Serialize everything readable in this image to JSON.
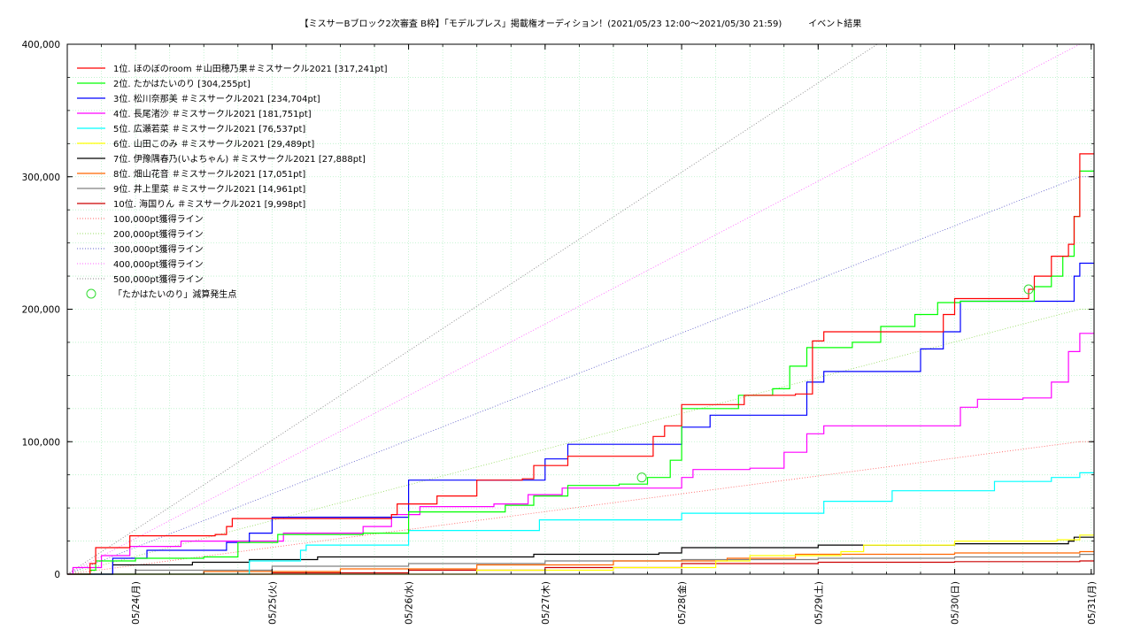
{
  "chart_data": {
    "type": "line",
    "title": "【ミスサーBブロック2次審査 B枠】「モデルプレス」掲載権オーディション！(2021/05/23 12:00〜2021/05/30 21:59)　　　イベント結果",
    "xlabel": "",
    "ylabel": "",
    "ylim": [
      0,
      400000
    ],
    "y_ticks": [
      "0",
      "100,000",
      "200,000",
      "300,000",
      "400,000"
    ],
    "y_tick_values": [
      0,
      100000,
      200000,
      300000,
      400000
    ],
    "x_range": [
      "2021/05/23 12:00",
      "2021/05/31 00:30"
    ],
    "x_ticks": [
      "05/24(月)",
      "05/25(火)",
      "05/26(水)",
      "05/27(木)",
      "05/28(金)",
      "05/29(土)",
      "05/30(日)",
      "05/31(月)"
    ],
    "x_tick_dates": [
      "2021/05/24",
      "2021/05/25",
      "2021/05/26",
      "2021/05/27",
      "2021/05/28",
      "2021/05/29",
      "2021/05/30",
      "2021/05/31"
    ],
    "grid": true,
    "legend_position": "top-left",
    "series": [
      {
        "name": "1位. ほのぼのroom ＃山田穂乃果＃ミスサークル2021 [317,241pt]",
        "color": "#ff0000",
        "points": [
          [
            "05/23 12:00",
            0
          ],
          [
            "05/23 16:00",
            8000
          ],
          [
            "05/23 17:00",
            20000
          ],
          [
            "05/23 20:00",
            20000
          ],
          [
            "05/23 23:00",
            29000
          ],
          [
            "05/24 06:00",
            29000
          ],
          [
            "05/24 14:00",
            30000
          ],
          [
            "05/24 16:00",
            36000
          ],
          [
            "05/24 17:00",
            42000
          ],
          [
            "05/25 13:00",
            42000
          ],
          [
            "05/25 21:00",
            45000
          ],
          [
            "05/25 22:00",
            53000
          ],
          [
            "05/26 05:00",
            59000
          ],
          [
            "05/26 11:00",
            59000
          ],
          [
            "05/26 12:00",
            71000
          ],
          [
            "05/26 20:00",
            72000
          ],
          [
            "05/26 22:00",
            82000
          ],
          [
            "05/27 02:00",
            82000
          ],
          [
            "05/27 04:00",
            89000
          ],
          [
            "05/27 17:00",
            89000
          ],
          [
            "05/27 19:00",
            104000
          ],
          [
            "05/27 21:00",
            112000
          ],
          [
            "05/28 00:00",
            128000
          ],
          [
            "05/28 10:00",
            128000
          ],
          [
            "05/28 11:00",
            135000
          ],
          [
            "05/28 20:00",
            136000
          ],
          [
            "05/28 23:00",
            176000
          ],
          [
            "05/29 01:00",
            183000
          ],
          [
            "05/29 22:00",
            196000
          ],
          [
            "05/30 00:00",
            208000
          ],
          [
            "05/30 12:00",
            208000
          ],
          [
            "05/30 13:00",
            215000
          ],
          [
            "05/30 14:00",
            225000
          ],
          [
            "05/30 17:00",
            240000
          ],
          [
            "05/30 20:00",
            249000
          ],
          [
            "05/30 21:00",
            270000
          ],
          [
            "05/30 22:00",
            317241
          ],
          [
            "05/31 00:30",
            317241
          ]
        ]
      },
      {
        "name": "2位. たかはたいのり [304,255pt]",
        "color": "#00ff00",
        "points": [
          [
            "05/23 12:00",
            0
          ],
          [
            "05/23 16:00",
            3000
          ],
          [
            "05/23 17:00",
            10000
          ],
          [
            "05/23 22:00",
            10000
          ],
          [
            "05/24 00:00",
            12000
          ],
          [
            "05/24 12:00",
            13000
          ],
          [
            "05/24 18:00",
            24000
          ],
          [
            "05/25 01:00",
            30000
          ],
          [
            "05/25 16:00",
            31000
          ],
          [
            "05/25 21:00",
            31000
          ],
          [
            "05/26 00:00",
            47000
          ],
          [
            "05/26 11:00",
            47000
          ],
          [
            "05/26 17:00",
            52000
          ],
          [
            "05/26 22:00",
            59000
          ],
          [
            "05/27 04:00",
            67000
          ],
          [
            "05/27 13:00",
            68000
          ],
          [
            "05/27 18:00",
            73000
          ],
          [
            "05/27 20:00",
            73000
          ],
          [
            "05/27 22:00",
            86000
          ],
          [
            "05/28 00:00",
            125000
          ],
          [
            "05/28 08:00",
            125000
          ],
          [
            "05/28 10:00",
            135000
          ],
          [
            "05/28 16:00",
            140000
          ],
          [
            "05/28 19:00",
            157000
          ],
          [
            "05/28 22:00",
            171000
          ],
          [
            "05/29 06:00",
            175000
          ],
          [
            "05/29 11:00",
            187000
          ],
          [
            "05/29 17:00",
            196000
          ],
          [
            "05/29 21:00",
            205000
          ],
          [
            "05/30 01:00",
            206000
          ],
          [
            "05/30 12:00",
            206000
          ],
          [
            "05/30 14:00",
            217000
          ],
          [
            "05/30 17:00",
            225000
          ],
          [
            "05/30 19:00",
            240000
          ],
          [
            "05/30 21:00",
            270000
          ],
          [
            "05/30 22:00",
            304255
          ],
          [
            "05/31 00:30",
            304255
          ]
        ]
      },
      {
        "name": "3位. 松川奈那美 ＃ミスサークル2021 [234,704pt]",
        "color": "#0000ff",
        "points": [
          [
            "05/23 12:00",
            0
          ],
          [
            "05/23 19:00",
            0
          ],
          [
            "05/23 20:00",
            12000
          ],
          [
            "05/24 02:00",
            18000
          ],
          [
            "05/24 12:00",
            18000
          ],
          [
            "05/24 16:00",
            24000
          ],
          [
            "05/24 20:00",
            31000
          ],
          [
            "05/25 00:00",
            43000
          ],
          [
            "05/25 20:00",
            43000
          ],
          [
            "05/26 00:00",
            71000
          ],
          [
            "05/26 20:00",
            71000
          ],
          [
            "05/27 00:00",
            87000
          ],
          [
            "05/27 04:00",
            98000
          ],
          [
            "05/27 20:00",
            98000
          ],
          [
            "05/28 00:00",
            111000
          ],
          [
            "05/28 05:00",
            120000
          ],
          [
            "05/28 20:00",
            120000
          ],
          [
            "05/28 22:00",
            145000
          ],
          [
            "05/29 01:00",
            153000
          ],
          [
            "05/29 14:00",
            153000
          ],
          [
            "05/29 18:00",
            170000
          ],
          [
            "05/29 22:00",
            183000
          ],
          [
            "05/30 01:00",
            206000
          ],
          [
            "05/30 18:00",
            206000
          ],
          [
            "05/30 21:00",
            225000
          ],
          [
            "05/30 22:00",
            234704
          ],
          [
            "05/31 00:30",
            234704
          ]
        ]
      },
      {
        "name": "4位. 長尾渚沙 ＃ミスサークル2021 [181,751pt]",
        "color": "#ff00ff",
        "points": [
          [
            "05/23 12:00",
            0
          ],
          [
            "05/23 13:00",
            5000
          ],
          [
            "05/23 18:00",
            14000
          ],
          [
            "05/23 23:00",
            21000
          ],
          [
            "05/24 08:00",
            25000
          ],
          [
            "05/25 02:00",
            31000
          ],
          [
            "05/25 16:00",
            36000
          ],
          [
            "05/25 21:00",
            45000
          ],
          [
            "05/26 02:00",
            51000
          ],
          [
            "05/26 15:00",
            53000
          ],
          [
            "05/26 21:00",
            60000
          ],
          [
            "05/27 03:00",
            65000
          ],
          [
            "05/27 20:00",
            65000
          ],
          [
            "05/28 00:00",
            73000
          ],
          [
            "05/28 02:00",
            79000
          ],
          [
            "05/28 12:00",
            80000
          ],
          [
            "05/28 18:00",
            92000
          ],
          [
            "05/28 22:00",
            106000
          ],
          [
            "05/29 01:00",
            112000
          ],
          [
            "05/29 22:00",
            112000
          ],
          [
            "05/30 01:00",
            126000
          ],
          [
            "05/30 04:00",
            132000
          ],
          [
            "05/30 12:00",
            133000
          ],
          [
            "05/30 17:00",
            145000
          ],
          [
            "05/30 20:00",
            168000
          ],
          [
            "05/30 22:00",
            181751
          ],
          [
            "05/31 00:30",
            181751
          ]
        ]
      },
      {
        "name": "5位. 広瀬若菜 ＃ミスサークル2021 [76,537pt]",
        "color": "#00ffff",
        "points": [
          [
            "05/23 12:00",
            0
          ],
          [
            "05/24 18:00",
            0
          ],
          [
            "05/24 20:00",
            10000
          ],
          [
            "05/25 05:00",
            18000
          ],
          [
            "05/25 06:00",
            22000
          ],
          [
            "05/25 20:00",
            22000
          ],
          [
            "05/26 00:00",
            33000
          ],
          [
            "05/26 20:00",
            33000
          ],
          [
            "05/26 23:00",
            41000
          ],
          [
            "05/27 20:00",
            41000
          ],
          [
            "05/28 00:00",
            46000
          ],
          [
            "05/28 20:00",
            46000
          ],
          [
            "05/29 01:00",
            55000
          ],
          [
            "05/29 12:00",
            55000
          ],
          [
            "05/29 13:00",
            63000
          ],
          [
            "05/30 05:00",
            63000
          ],
          [
            "05/30 07:00",
            70000
          ],
          [
            "05/30 17:00",
            73000
          ],
          [
            "05/30 22:00",
            76537
          ],
          [
            "05/31 00:30",
            76537
          ]
        ]
      },
      {
        "name": "6位. 山田このみ ＃ミスサークル2021 [29,489pt]",
        "color": "#ffff00",
        "points": [
          [
            "05/23 12:00",
            0
          ],
          [
            "05/25 12:00",
            0
          ],
          [
            "05/26 12:00",
            3000
          ],
          [
            "05/27 12:00",
            5000
          ],
          [
            "05/28 06:00",
            10000
          ],
          [
            "05/28 12:00",
            14000
          ],
          [
            "05/29 04:00",
            17000
          ],
          [
            "05/29 08:00",
            22000
          ],
          [
            "05/30 00:00",
            25000
          ],
          [
            "05/30 18:00",
            26000
          ],
          [
            "05/30 22:00",
            29489
          ],
          [
            "05/31 00:30",
            29489
          ]
        ]
      },
      {
        "name": "7位. 伊豫隅春乃(いよちゃん) ＃ミスサークル2021 [27,888pt]",
        "color": "#000000",
        "points": [
          [
            "05/23 12:00",
            0
          ],
          [
            "05/23 19:00",
            0
          ],
          [
            "05/23 20:00",
            7000
          ],
          [
            "05/24 10:00",
            9000
          ],
          [
            "05/24 20:00",
            11000
          ],
          [
            "05/25 08:00",
            13000
          ],
          [
            "05/26 12:00",
            13000
          ],
          [
            "05/26 22:00",
            15000
          ],
          [
            "05/27 20:00",
            16000
          ],
          [
            "05/28 00:00",
            20000
          ],
          [
            "05/29 00:00",
            22000
          ],
          [
            "05/30 00:00",
            23000
          ],
          [
            "05/30 20:00",
            25000
          ],
          [
            "05/30 21:00",
            27888
          ],
          [
            "05/31 00:30",
            27888
          ]
        ]
      },
      {
        "name": "8位. 畑山花音 ＃ミスサークル2021 [17,051pt]",
        "color": "#ff6600",
        "points": [
          [
            "05/23 12:00",
            0
          ],
          [
            "05/24 12:00",
            2000
          ],
          [
            "05/25 12:00",
            4000
          ],
          [
            "05/26 12:00",
            7000
          ],
          [
            "05/27 12:00",
            10000
          ],
          [
            "05/28 08:00",
            12000
          ],
          [
            "05/28 20:00",
            15000
          ],
          [
            "05/30 00:00",
            16000
          ],
          [
            "05/30 22:00",
            17051
          ],
          [
            "05/31 00:30",
            17051
          ]
        ]
      },
      {
        "name": "9位. 井上里菜 ＃ミスサークル2021 [14,961pt]",
        "color": "#808080",
        "points": [
          [
            "05/23 12:00",
            0
          ],
          [
            "05/24 00:00",
            3000
          ],
          [
            "05/25 00:00",
            6000
          ],
          [
            "05/26 00:00",
            8000
          ],
          [
            "05/27 00:00",
            10000
          ],
          [
            "05/28 00:00",
            11000
          ],
          [
            "05/29 00:00",
            12000
          ],
          [
            "05/30 00:00",
            13000
          ],
          [
            "05/30 22:00",
            14961
          ],
          [
            "05/31 00:30",
            14961
          ]
        ]
      },
      {
        "name": "10位. 海国りん ＃ミスサークル2021 [9,998pt]",
        "color": "#cc0000",
        "points": [
          [
            "05/23 12:00",
            0
          ],
          [
            "05/25 00:00",
            1000
          ],
          [
            "05/26 00:00",
            3000
          ],
          [
            "05/27 00:00",
            5000
          ],
          [
            "05/28 00:00",
            8000
          ],
          [
            "05/29 00:00",
            9000
          ],
          [
            "05/30 00:00",
            9500
          ],
          [
            "05/30 22:00",
            9998
          ],
          [
            "05/31 00:30",
            9998
          ]
        ]
      }
    ],
    "reference_lines": [
      {
        "name": "100,000pt獲得ライン",
        "target": 100000,
        "color": "#ff6666"
      },
      {
        "name": "200,000pt獲得ライン",
        "target": 200000,
        "color": "#99dd66"
      },
      {
        "name": "300,000pt獲得ライン",
        "target": 300000,
        "color": "#6666cc"
      },
      {
        "name": "400,000pt獲得ライン",
        "target": 400000,
        "color": "#ff66ff"
      },
      {
        "name": "500,000pt獲得ライン",
        "target": 500000,
        "color": "#888888"
      }
    ],
    "event_period": [
      "2021/05/23 12:00",
      "2021/05/30 21:59"
    ],
    "markers": {
      "name": "「たかはたいのり」減算発生点",
      "color": "#33dd33",
      "points": [
        [
          "05/27 17:00",
          73000
        ],
        [
          "05/30 13:00",
          215000
        ]
      ]
    }
  }
}
